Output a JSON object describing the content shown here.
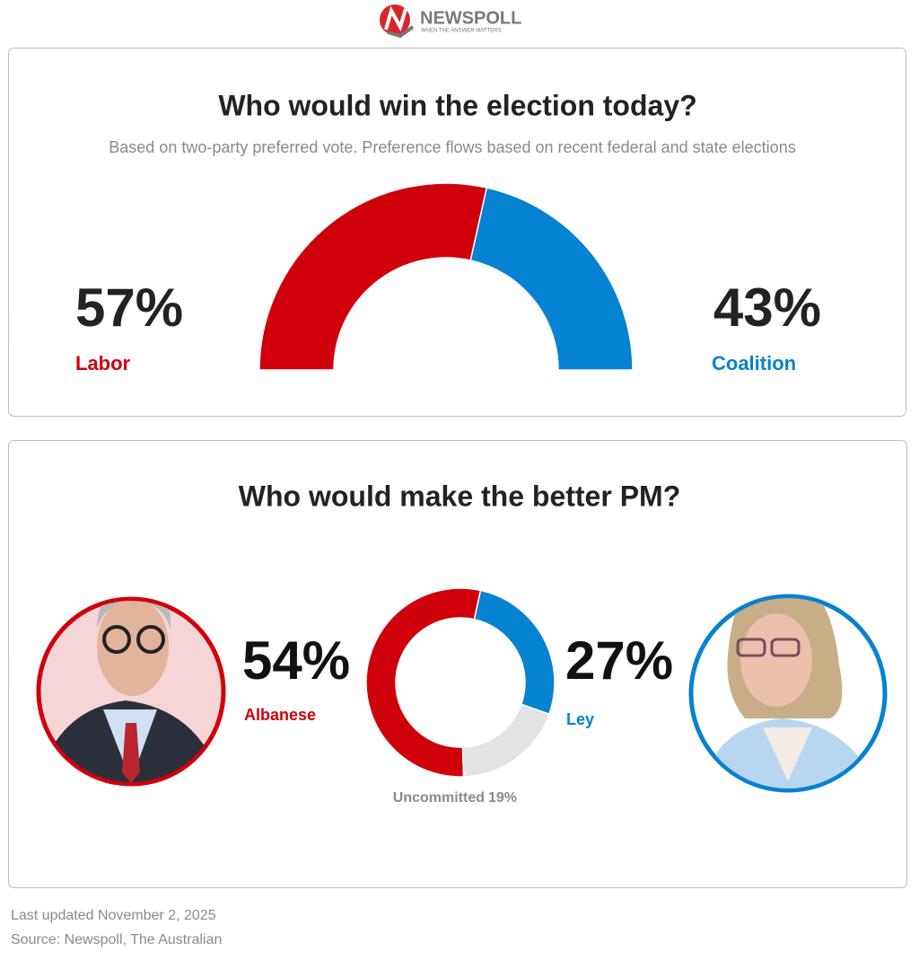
{
  "header": {
    "brand": "NEWSPOLL",
    "tagline": "WHEN THE ANSWER MATTERS"
  },
  "chart_data": [
    {
      "type": "semidonut",
      "title": "Who would win the election today?",
      "subtitle": "Based on two-party preferred vote. Preference flows based on recent federal and state elections",
      "categories": [
        "Labor",
        "Coalition"
      ],
      "values": [
        57,
        43
      ],
      "value_labels": [
        "57%",
        "43%"
      ],
      "colors": [
        "#d0000b",
        "#0582d1"
      ]
    },
    {
      "type": "donut",
      "title": "Who would make the better PM?",
      "categories": [
        "Albanese",
        "Ley",
        "Uncommitted"
      ],
      "values": [
        54,
        27,
        19
      ],
      "value_labels": [
        "54%",
        "27%",
        "19%"
      ],
      "colors": [
        "#d0000b",
        "#0582d1",
        "#e3e3e3"
      ]
    }
  ],
  "footer": {
    "updated": "Last updated November 2, 2025",
    "source": "Source: Newspoll, The Australian"
  }
}
